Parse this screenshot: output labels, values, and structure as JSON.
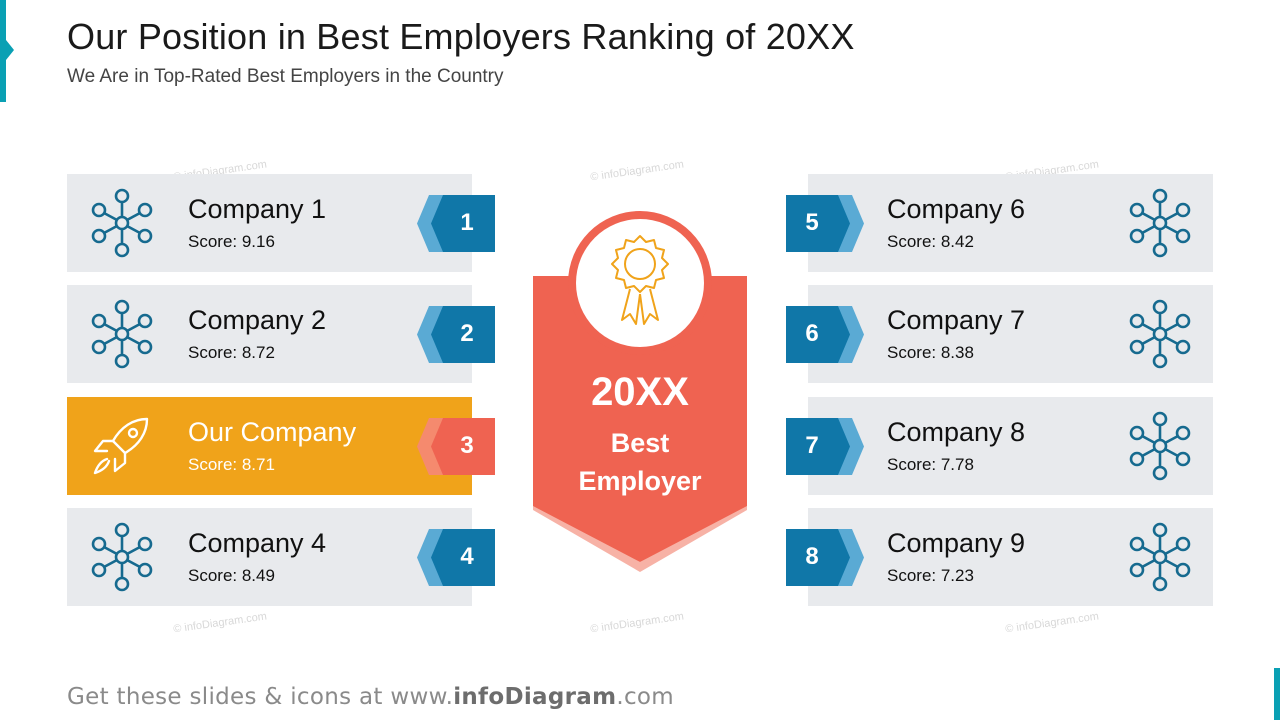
{
  "header": {
    "title": "Our Position in Best Employers Ranking of 20XX",
    "subtitle": "We Are in Top-Rated Best Employers in the Country"
  },
  "watermark_text": "© infoDiagram.com",
  "colors": {
    "teal_accent": "#0aa0b4",
    "rank_blue": "#1077a8",
    "rank_blue_light": "#5aaad4",
    "highlight_orange": "#f0a31a",
    "highlight_rank": "#ef6351",
    "card_gray": "#e8eaed",
    "ribbon_red": "#ef6351",
    "icon_blue": "#166a8f",
    "award_gold": "#f0a31a"
  },
  "left_list": [
    {
      "name": "Company 1",
      "score": "Score: 9.16",
      "rank": "1",
      "icon": "network-hub-icon",
      "highlight": false
    },
    {
      "name": "Company 2",
      "score": "Score: 8.72",
      "rank": "2",
      "icon": "network-hub-icon",
      "highlight": false
    },
    {
      "name": "Our Company",
      "score": "Score: 8.71",
      "rank": "3",
      "icon": "rocket-icon",
      "highlight": true
    },
    {
      "name": "Company 4",
      "score": "Score: 8.49",
      "rank": "4",
      "icon": "network-hub-icon",
      "highlight": false
    }
  ],
  "right_list": [
    {
      "name": "Company 6",
      "score": "Score: 8.42",
      "rank": "5",
      "icon": "network-hub-icon"
    },
    {
      "name": "Company 7",
      "score": "Score: 8.38",
      "rank": "6",
      "icon": "network-hub-icon"
    },
    {
      "name": "Company 8",
      "score": "Score: 7.78",
      "rank": "7",
      "icon": "network-hub-icon"
    },
    {
      "name": "Company 9",
      "score": "Score: 7.23",
      "rank": "8",
      "icon": "network-hub-icon"
    }
  ],
  "center_badge": {
    "icon": "award-rosette-icon",
    "year": "20XX",
    "line1": "Best",
    "line2": "Employer"
  },
  "footer": {
    "prefix": "Get these slides & icons at www.",
    "brand": "infoDiagram",
    "suffix": ".com"
  }
}
